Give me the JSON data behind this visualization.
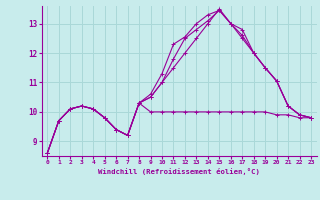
{
  "title": "",
  "xlabel": "Windchill (Refroidissement éolien,°C)",
  "ylabel": "",
  "xlim": [
    -0.5,
    23.5
  ],
  "ylim": [
    8.5,
    13.6
  ],
  "yticks": [
    9,
    10,
    11,
    12,
    13
  ],
  "xticks": [
    0,
    1,
    2,
    3,
    4,
    5,
    6,
    7,
    8,
    9,
    10,
    11,
    12,
    13,
    14,
    15,
    16,
    17,
    18,
    19,
    20,
    21,
    22,
    23
  ],
  "bg_color": "#c8ecec",
  "line_color": "#990099",
  "grid_color": "#aad8d8",
  "series": [
    [
      8.6,
      9.7,
      10.1,
      10.2,
      10.1,
      9.8,
      9.4,
      9.2,
      10.3,
      10.0,
      10.0,
      10.0,
      10.0,
      10.0,
      10.0,
      10.0,
      10.0,
      10.0,
      10.0,
      10.0,
      9.9,
      9.9,
      9.8,
      9.8
    ],
    [
      8.6,
      9.7,
      10.1,
      10.2,
      10.1,
      9.8,
      9.4,
      9.2,
      10.3,
      10.5,
      11.0,
      11.5,
      12.0,
      12.5,
      13.0,
      13.5,
      13.0,
      12.5,
      12.0,
      11.5,
      11.05,
      10.2,
      9.9,
      9.8
    ],
    [
      8.6,
      9.7,
      10.1,
      10.2,
      10.1,
      9.8,
      9.4,
      9.2,
      10.3,
      10.5,
      11.0,
      11.8,
      12.5,
      12.8,
      13.1,
      13.45,
      13.0,
      12.8,
      12.0,
      11.5,
      11.05,
      10.2,
      9.9,
      9.8
    ],
    [
      8.6,
      9.7,
      10.1,
      10.2,
      10.1,
      9.8,
      9.4,
      9.2,
      10.3,
      10.6,
      11.3,
      12.3,
      12.55,
      13.0,
      13.3,
      13.45,
      13.0,
      12.6,
      12.0,
      11.5,
      11.05,
      10.2,
      9.9,
      9.8
    ]
  ]
}
